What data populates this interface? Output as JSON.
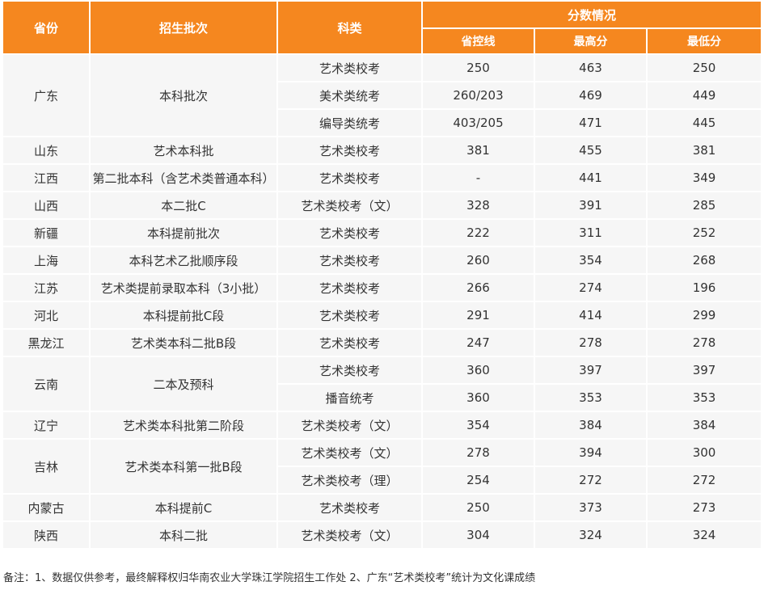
{
  "table": {
    "headers": {
      "province": "省份",
      "batch": "招生批次",
      "category": "科类",
      "score_group": "分数情况",
      "control_line": "省控线",
      "max": "最高分",
      "min": "最低分"
    },
    "groups": [
      {
        "province": "广东",
        "batch": "本科批次",
        "rows": [
          {
            "category": "艺术类校考",
            "control": "250",
            "max": "463",
            "min": "250"
          },
          {
            "category": "美术类统考",
            "control": "260/203",
            "max": "469",
            "min": "449"
          },
          {
            "category": "编导类统考",
            "control": "403/205",
            "max": "471",
            "min": "445"
          }
        ]
      },
      {
        "province": "山东",
        "batch": "艺术本科批",
        "rows": [
          {
            "category": "艺术类校考",
            "control": "381",
            "max": "455",
            "min": "381"
          }
        ]
      },
      {
        "province": "江西",
        "batch": "第二批本科（含艺术类普通本科）",
        "rows": [
          {
            "category": "艺术类校考",
            "control": "-",
            "max": "441",
            "min": "349"
          }
        ]
      },
      {
        "province": "山西",
        "batch": "本二批C",
        "rows": [
          {
            "category": "艺术类校考（文）",
            "control": "328",
            "max": "391",
            "min": "285"
          }
        ]
      },
      {
        "province": "新疆",
        "batch": "本科提前批次",
        "rows": [
          {
            "category": "艺术类校考",
            "control": "222",
            "max": "311",
            "min": "252"
          }
        ]
      },
      {
        "province": "上海",
        "batch": "本科艺术乙批顺序段",
        "rows": [
          {
            "category": "艺术类校考",
            "control": "260",
            "max": "354",
            "min": "268"
          }
        ]
      },
      {
        "province": "江苏",
        "batch": "艺术类提前录取本科（3小批）",
        "rows": [
          {
            "category": "艺术类校考",
            "control": "266",
            "max": "274",
            "min": "196"
          }
        ]
      },
      {
        "province": "河北",
        "batch": "本科提前批C段",
        "rows": [
          {
            "category": "艺术类校考",
            "control": "291",
            "max": "414",
            "min": "299"
          }
        ]
      },
      {
        "province": "黑龙江",
        "batch": "艺术类本科二批B段",
        "rows": [
          {
            "category": "艺术类校考",
            "control": "247",
            "max": "278",
            "min": "278"
          }
        ]
      },
      {
        "province": "云南",
        "batch": "二本及预科",
        "rows": [
          {
            "category": "艺术类校考",
            "control": "360",
            "max": "397",
            "min": "397"
          },
          {
            "category": "播音统考",
            "control": "360",
            "max": "353",
            "min": "353"
          }
        ]
      },
      {
        "province": "辽宁",
        "batch": "艺术类本科批第二阶段",
        "rows": [
          {
            "category": "艺术类校考（文）",
            "control": "354",
            "max": "384",
            "min": "384"
          }
        ]
      },
      {
        "province": "吉林",
        "batch": "艺术类本科第一批B段",
        "rows": [
          {
            "category": "艺术类校考（文）",
            "control": "278",
            "max": "394",
            "min": "300"
          },
          {
            "category": "艺术类校考（理）",
            "control": "254",
            "max": "272",
            "min": "272"
          }
        ]
      },
      {
        "province": "内蒙古",
        "batch": "本科提前C",
        "rows": [
          {
            "category": "艺术类校考",
            "control": "250",
            "max": "373",
            "min": "273"
          }
        ]
      },
      {
        "province": "陕西",
        "batch": "本科二批",
        "rows": [
          {
            "category": "艺术类校考（文）",
            "control": "304",
            "max": "324",
            "min": "324"
          }
        ]
      }
    ]
  },
  "note": "备注：1、数据仅供参考，最终解释权归华南农业大学珠江学院招生工作处   2、广东“艺术类校考”统计为文化课成绩",
  "colors": {
    "header_bg": "#f5871f",
    "header_text": "#ffffff",
    "cell_bg": "#f6f6f6"
  }
}
